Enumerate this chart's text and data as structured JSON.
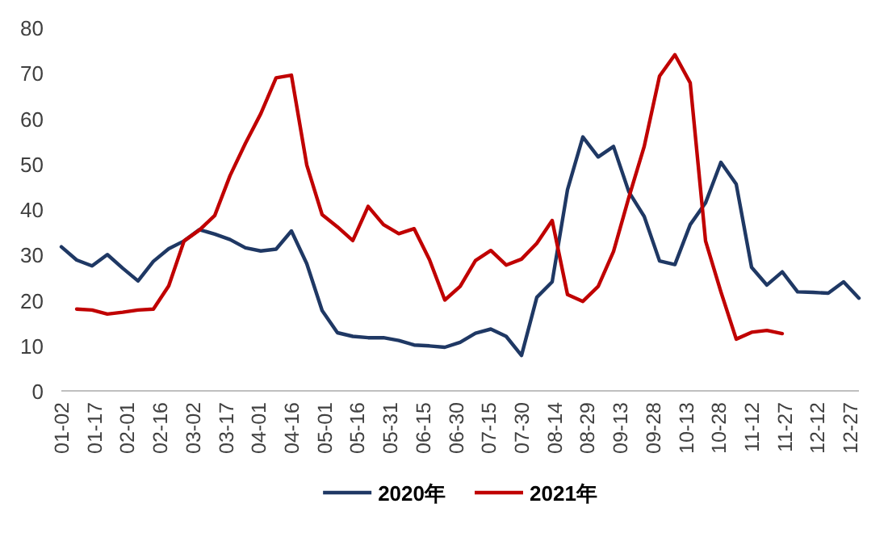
{
  "chart_data": {
    "type": "line",
    "x": [
      "--01-02",
      "--01-09",
      "--01-16",
      "--01-23",
      "--01-30",
      "--02-06",
      "--02-13",
      "--02-20",
      "--02-27",
      "--03-05",
      "--03-12",
      "--03-19",
      "--03-26",
      "--04-02",
      "--04-09",
      "--04-16",
      "--04-23",
      "--04-30",
      "--05-07",
      "--05-14",
      "--05-21",
      "--05-28",
      "--06-04",
      "--06-11",
      "--06-18",
      "--06-25",
      "--07-02",
      "--07-09",
      "--07-16",
      "--07-23",
      "--07-30",
      "--08-06",
      "--08-13",
      "--08-20",
      "--08-27",
      "--09-03",
      "--09-10",
      "--09-17",
      "--09-24",
      "--10-01",
      "--10-08",
      "--10-15",
      "--10-22",
      "--10-29",
      "--11-05",
      "--11-12",
      "--11-19",
      "--11-26",
      "--12-03",
      "--12-10",
      "--12-17",
      "--12-24",
      "--12-31"
    ],
    "series": [
      {
        "name": "2020年",
        "color": "#1f3864",
        "values": [
          31.7,
          28.8,
          27.5,
          30,
          27,
          24.2,
          28.5,
          31.3,
          33,
          35.5,
          34.5,
          33.3,
          31.5,
          30.8,
          31.2,
          35.2,
          28,
          17.7,
          12.8,
          12,
          11.7,
          11.7,
          11.1,
          10.1,
          9.9,
          9.6,
          10.7,
          12.7,
          13.6,
          12,
          7.8,
          20.6,
          24,
          44.3,
          55.9,
          51.5,
          53.8,
          43.8,
          38.4,
          28.6,
          27.8,
          36.6,
          41.4,
          50.3,
          45.5,
          27.2,
          23.3,
          26.2,
          21.8,
          21.7,
          21.5,
          24,
          20.4
        ]
      },
      {
        "name": "2021年",
        "color": "#c00000",
        "values": [
          null,
          18,
          17.8,
          16.9,
          17.3,
          17.8,
          18,
          23.1,
          33,
          35.4,
          38.6,
          47.4,
          54.5,
          61,
          68.9,
          69.5,
          49.7,
          38.8,
          36.1,
          33.1,
          40.6,
          36.6,
          34.6,
          35.7,
          28.9,
          20,
          23,
          28.7,
          30.9,
          27.7,
          29,
          32.5,
          37.5,
          21.2,
          19.7,
          23,
          30.7,
          42.6,
          53.8,
          69.3,
          74,
          67.8,
          33,
          21.8,
          11.4,
          12.9,
          13.3,
          12.6,
          null,
          null,
          null,
          null,
          null
        ]
      }
    ],
    "xlim": [
      "--01-02",
      "--12-31"
    ],
    "xticks": [
      {
        "value": "--01-02",
        "label": "01-02"
      },
      {
        "value": "--01-17",
        "label": "01-17"
      },
      {
        "value": "--02-01",
        "label": "02-01"
      },
      {
        "value": "--02-16",
        "label": "02-16"
      },
      {
        "value": "--03-02",
        "label": "03-02"
      },
      {
        "value": "--03-17",
        "label": "03-17"
      },
      {
        "value": "--04-01",
        "label": "04-01"
      },
      {
        "value": "--04-16",
        "label": "04-16"
      },
      {
        "value": "--05-01",
        "label": "05-01"
      },
      {
        "value": "--05-16",
        "label": "05-16"
      },
      {
        "value": "--05-31",
        "label": "05-31"
      },
      {
        "value": "--06-15",
        "label": "06-15"
      },
      {
        "value": "--06-30",
        "label": "06-30"
      },
      {
        "value": "--07-15",
        "label": "07-15"
      },
      {
        "value": "--07-30",
        "label": "07-30"
      },
      {
        "value": "--08-14",
        "label": "08-14"
      },
      {
        "value": "--08-29",
        "label": "08-29"
      },
      {
        "value": "--09-13",
        "label": "09-13"
      },
      {
        "value": "--09-28",
        "label": "09-28"
      },
      {
        "value": "--10-13",
        "label": "10-13"
      },
      {
        "value": "--10-28",
        "label": "10-28"
      },
      {
        "value": "--11-12",
        "label": "11-12"
      },
      {
        "value": "--11-27",
        "label": "11-27"
      },
      {
        "value": "--12-12",
        "label": "12-12"
      },
      {
        "value": "--12-27",
        "label": "12-27"
      }
    ],
    "ylim": [
      0,
      80
    ],
    "yticks": [
      0,
      10,
      20,
      30,
      40,
      50,
      60,
      70,
      80
    ],
    "legend": "bottom",
    "grid": false
  }
}
